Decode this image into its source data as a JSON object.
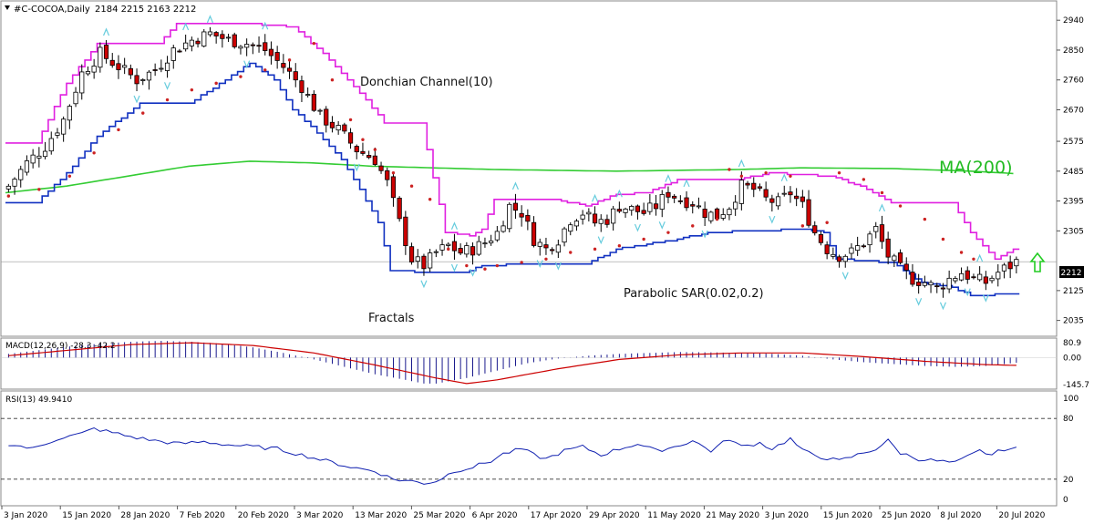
{
  "header": {
    "symbol": "#C-COCOA,Daily",
    "ohlc": "2184 2215 2163 2212"
  },
  "chart_data": {
    "type": "candlestick",
    "main": {
      "ylim": [
        1990,
        2990
      ],
      "y_ticks": [
        2035,
        2125,
        2212,
        2305,
        2395,
        2485,
        2575,
        2670,
        2760,
        2850,
        2940
      ],
      "current_price": 2212,
      "annotations": {
        "donchian": "Donchian Channel(10)",
        "ma": "MA(200)",
        "sar": "Parabolic SAR(0.02,0.2)",
        "fractals": "Fractals"
      },
      "x_labels": [
        "3 Jan 2020",
        "15 Jan 2020",
        "28 Jan 2020",
        "7 Feb 2020",
        "20 Feb 2020",
        "3 Mar 2020",
        "13 Mar 2020",
        "25 Mar 2020",
        "6 Apr 2020",
        "17 Apr 2020",
        "29 Apr 2020",
        "11 May 2020",
        "21 May 2020",
        "3 Jun 2020",
        "15 Jun 2020",
        "25 Jun 2020",
        "8 Jul 2020",
        "20 Jul 2020"
      ],
      "close_anchors": [
        [
          0,
          2440
        ],
        [
          3,
          2510
        ],
        [
          6,
          2560
        ],
        [
          9,
          2640
        ],
        [
          12,
          2780
        ],
        [
          15,
          2840
        ],
        [
          18,
          2800
        ],
        [
          21,
          2760
        ],
        [
          24,
          2790
        ],
        [
          27,
          2850
        ],
        [
          30,
          2880
        ],
        [
          33,
          2900
        ],
        [
          36,
          2880
        ],
        [
          39,
          2870
        ],
        [
          42,
          2850
        ],
        [
          45,
          2800
        ],
        [
          48,
          2740
        ],
        [
          51,
          2650
        ],
        [
          54,
          2610
        ],
        [
          57,
          2550
        ],
        [
          60,
          2520
        ],
        [
          62,
          2450
        ],
        [
          64,
          2330
        ],
        [
          66,
          2220
        ],
        [
          68,
          2200
        ],
        [
          70,
          2240
        ],
        [
          72,
          2260
        ],
        [
          74,
          2240
        ],
        [
          76,
          2250
        ],
        [
          78,
          2270
        ],
        [
          80,
          2300
        ],
        [
          82,
          2380
        ],
        [
          84,
          2360
        ],
        [
          86,
          2280
        ],
        [
          88,
          2250
        ],
        [
          90,
          2280
        ],
        [
          92,
          2340
        ],
        [
          94,
          2360
        ],
        [
          96,
          2330
        ],
        [
          98,
          2340
        ],
        [
          100,
          2380
        ],
        [
          102,
          2370
        ],
        [
          104,
          2360
        ],
        [
          106,
          2380
        ],
        [
          108,
          2420
        ],
        [
          110,
          2400
        ],
        [
          112,
          2390
        ],
        [
          114,
          2360
        ],
        [
          116,
          2350
        ],
        [
          118,
          2380
        ],
        [
          120,
          2440
        ],
        [
          122,
          2430
        ],
        [
          124,
          2400
        ],
        [
          126,
          2390
        ],
        [
          128,
          2420
        ],
        [
          130,
          2380
        ],
        [
          132,
          2300
        ],
        [
          134,
          2250
        ],
        [
          136,
          2230
        ],
        [
          138,
          2240
        ],
        [
          140,
          2270
        ],
        [
          142,
          2310
        ],
        [
          144,
          2230
        ],
        [
          146,
          2190
        ],
        [
          148,
          2160
        ],
        [
          150,
          2150
        ],
        [
          152,
          2130
        ],
        [
          154,
          2160
        ],
        [
          156,
          2180
        ],
        [
          158,
          2160
        ],
        [
          160,
          2150
        ],
        [
          162,
          2180
        ],
        [
          164,
          2200
        ],
        [
          165,
          2212
        ]
      ],
      "ma200": [
        [
          0,
          2420
        ],
        [
          10,
          2440
        ],
        [
          20,
          2470
        ],
        [
          30,
          2500
        ],
        [
          40,
          2515
        ],
        [
          50,
          2510
        ],
        [
          60,
          2500
        ],
        [
          80,
          2490
        ],
        [
          100,
          2485
        ],
        [
          120,
          2490
        ],
        [
          130,
          2495
        ],
        [
          145,
          2493
        ],
        [
          158,
          2485
        ],
        [
          165,
          2478
        ]
      ],
      "donchian_upper": [
        [
          0,
          2570
        ],
        [
          5,
          2570
        ],
        [
          10,
          2750
        ],
        [
          15,
          2870
        ],
        [
          25,
          2870
        ],
        [
          28,
          2930
        ],
        [
          40,
          2930
        ],
        [
          47,
          2920
        ],
        [
          52,
          2840
        ],
        [
          58,
          2720
        ],
        [
          62,
          2630
        ],
        [
          68,
          2630
        ],
        [
          72,
          2300
        ],
        [
          76,
          2290
        ],
        [
          78,
          2310
        ],
        [
          80,
          2400
        ],
        [
          90,
          2400
        ],
        [
          95,
          2380
        ],
        [
          100,
          2415
        ],
        [
          105,
          2420
        ],
        [
          110,
          2460
        ],
        [
          120,
          2460
        ],
        [
          125,
          2480
        ],
        [
          135,
          2470
        ],
        [
          140,
          2440
        ],
        [
          145,
          2390
        ],
        [
          155,
          2390
        ],
        [
          158,
          2300
        ],
        [
          162,
          2220
        ],
        [
          165,
          2250
        ]
      ],
      "donchian_lower": [
        [
          0,
          2390
        ],
        [
          5,
          2390
        ],
        [
          10,
          2480
        ],
        [
          15,
          2590
        ],
        [
          22,
          2690
        ],
        [
          30,
          2690
        ],
        [
          36,
          2760
        ],
        [
          40,
          2810
        ],
        [
          44,
          2760
        ],
        [
          47,
          2670
        ],
        [
          50,
          2620
        ],
        [
          55,
          2520
        ],
        [
          58,
          2430
        ],
        [
          61,
          2330
        ],
        [
          63,
          2185
        ],
        [
          70,
          2180
        ],
        [
          75,
          2180
        ],
        [
          78,
          2200
        ],
        [
          85,
          2205
        ],
        [
          95,
          2205
        ],
        [
          100,
          2250
        ],
        [
          110,
          2280
        ],
        [
          115,
          2300
        ],
        [
          130,
          2310
        ],
        [
          134,
          2300
        ],
        [
          136,
          2220
        ],
        [
          145,
          2210
        ],
        [
          150,
          2150
        ],
        [
          155,
          2135
        ],
        [
          158,
          2110
        ],
        [
          165,
          2115
        ]
      ],
      "sar_dots": [
        [
          0,
          2410
        ],
        [
          5,
          2430
        ],
        [
          10,
          2470
        ],
        [
          14,
          2540
        ],
        [
          18,
          2610
        ],
        [
          22,
          2660
        ],
        [
          26,
          2700
        ],
        [
          30,
          2730
        ],
        [
          34,
          2750
        ],
        [
          38,
          2770
        ],
        [
          42,
          2790
        ],
        [
          46,
          2820
        ],
        [
          50,
          2870
        ],
        [
          53,
          2760
        ],
        [
          56,
          2640
        ],
        [
          58,
          2580
        ],
        [
          60,
          2550
        ],
        [
          63,
          2480
        ],
        [
          66,
          2440
        ],
        [
          69,
          2400
        ],
        [
          72,
          2250
        ],
        [
          75,
          2200
        ],
        [
          78,
          2190
        ],
        [
          80,
          2200
        ],
        [
          84,
          2210
        ],
        [
          88,
          2220
        ],
        [
          92,
          2240
        ],
        [
          96,
          2250
        ],
        [
          100,
          2260
        ],
        [
          104,
          2280
        ],
        [
          108,
          2300
        ],
        [
          112,
          2320
        ],
        [
          116,
          2340
        ],
        [
          118,
          2490
        ],
        [
          120,
          2470
        ],
        [
          124,
          2480
        ],
        [
          128,
          2470
        ],
        [
          130,
          2320
        ],
        [
          134,
          2330
        ],
        [
          136,
          2480
        ],
        [
          140,
          2460
        ],
        [
          143,
          2420
        ],
        [
          146,
          2380
        ],
        [
          150,
          2340
        ],
        [
          153,
          2280
        ],
        [
          156,
          2240
        ],
        [
          158,
          2220
        ]
      ]
    },
    "macd": {
      "label": "MACD(12,26,9) -28.3 -42.2",
      "y_ticks": [
        "80.9",
        "0.00",
        "-145.7"
      ],
      "ylim": [
        -160,
        95
      ],
      "histogram_anchors": [
        [
          0,
          20
        ],
        [
          5,
          40
        ],
        [
          10,
          60
        ],
        [
          15,
          75
        ],
        [
          20,
          85
        ],
        [
          25,
          90
        ],
        [
          30,
          85
        ],
        [
          35,
          75
        ],
        [
          40,
          55
        ],
        [
          45,
          25
        ],
        [
          50,
          -10
        ],
        [
          55,
          -50
        ],
        [
          60,
          -90
        ],
        [
          65,
          -120
        ],
        [
          68,
          -140
        ],
        [
          70,
          -140
        ],
        [
          75,
          -110
        ],
        [
          80,
          -70
        ],
        [
          85,
          -30
        ],
        [
          90,
          -5
        ],
        [
          95,
          10
        ],
        [
          100,
          20
        ],
        [
          105,
          25
        ],
        [
          110,
          30
        ],
        [
          115,
          28
        ],
        [
          120,
          25
        ],
        [
          125,
          20
        ],
        [
          130,
          10
        ],
        [
          135,
          -10
        ],
        [
          140,
          -25
        ],
        [
          145,
          -35
        ],
        [
          150,
          -45
        ],
        [
          155,
          -50
        ],
        [
          160,
          -45
        ],
        [
          165,
          -28
        ]
      ],
      "signal_anchors": [
        [
          0,
          10
        ],
        [
          10,
          40
        ],
        [
          20,
          70
        ],
        [
          30,
          80
        ],
        [
          40,
          65
        ],
        [
          50,
          25
        ],
        [
          60,
          -40
        ],
        [
          70,
          -110
        ],
        [
          75,
          -140
        ],
        [
          80,
          -120
        ],
        [
          90,
          -60
        ],
        [
          100,
          -10
        ],
        [
          110,
          15
        ],
        [
          120,
          25
        ],
        [
          130,
          25
        ],
        [
          140,
          5
        ],
        [
          150,
          -20
        ],
        [
          160,
          -38
        ],
        [
          165,
          -42
        ]
      ]
    },
    "rsi": {
      "label": "RSI(13) 49.9410",
      "y_ticks": [
        "100",
        "80",
        "20",
        "0"
      ],
      "ylim": [
        0,
        100
      ],
      "levels": [
        80,
        20
      ],
      "anchors": [
        [
          0,
          55
        ],
        [
          4,
          50
        ],
        [
          8,
          60
        ],
        [
          12,
          65
        ],
        [
          14,
          70
        ],
        [
          17,
          66
        ],
        [
          20,
          62
        ],
        [
          24,
          58
        ],
        [
          28,
          55
        ],
        [
          32,
          57
        ],
        [
          36,
          54
        ],
        [
          40,
          52
        ],
        [
          44,
          50
        ],
        [
          48,
          44
        ],
        [
          52,
          38
        ],
        [
          56,
          32
        ],
        [
          60,
          28
        ],
        [
          63,
          20
        ],
        [
          66,
          18
        ],
        [
          68,
          16
        ],
        [
          70,
          18
        ],
        [
          73,
          28
        ],
        [
          76,
          32
        ],
        [
          79,
          38
        ],
        [
          81,
          45
        ],
        [
          84,
          50
        ],
        [
          86,
          44
        ],
        [
          88,
          40
        ],
        [
          91,
          48
        ],
        [
          94,
          52
        ],
        [
          97,
          44
        ],
        [
          100,
          50
        ],
        [
          103,
          55
        ],
        [
          106,
          48
        ],
        [
          109,
          52
        ],
        [
          112,
          58
        ],
        [
          115,
          48
        ],
        [
          118,
          60
        ],
        [
          120,
          52
        ],
        [
          123,
          56
        ],
        [
          125,
          50
        ],
        [
          128,
          60
        ],
        [
          130,
          48
        ],
        [
          133,
          42
        ],
        [
          136,
          38
        ],
        [
          139,
          44
        ],
        [
          142,
          50
        ],
        [
          144,
          58
        ],
        [
          146,
          46
        ],
        [
          149,
          40
        ],
        [
          152,
          38
        ],
        [
          155,
          36
        ],
        [
          157,
          42
        ],
        [
          159,
          48
        ],
        [
          161,
          44
        ],
        [
          163,
          50
        ],
        [
          165,
          50
        ]
      ]
    }
  },
  "colors": {
    "bull_fill": "#ffffff",
    "bear_fill": "#cc0000",
    "candle_border": "#000000",
    "ma": "#33cc33",
    "donchian_upper": "#e020e0",
    "donchian_lower": "#1030c0",
    "sar": "#cc2222",
    "fractal": "#66ccdd",
    "macd_line": "#cc0000",
    "macd_hist": "#000080",
    "rsi_line": "#1020b0",
    "arrow": "#22cc22"
  }
}
